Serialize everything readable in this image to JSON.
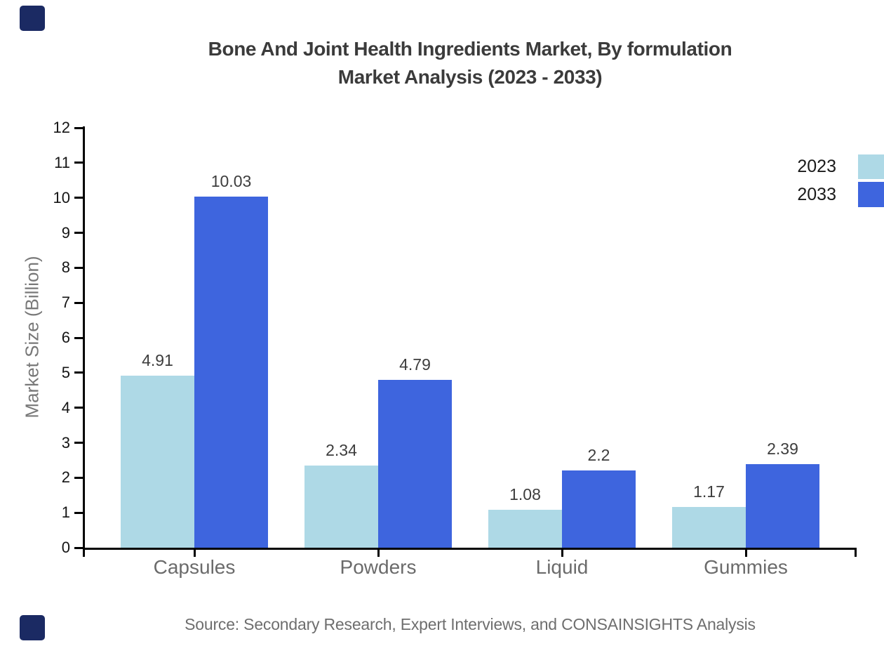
{
  "title": {
    "line1": "Bone And Joint Health Ingredients Market, By formulation",
    "line2": "Market Analysis (2023 - 2033)"
  },
  "y_axis": {
    "label": "Market Size (Billion)",
    "min": 0,
    "max": 12,
    "tick_step": 1
  },
  "x_axis": {
    "categories": [
      "Capsules",
      "Powders",
      "Liquid",
      "Gummies"
    ]
  },
  "legend": {
    "items": [
      {
        "label": "2023",
        "color": "#aed9e6"
      },
      {
        "label": "2033",
        "color": "#3e65de"
      }
    ]
  },
  "source": {
    "text": "Source: Secondary Research, Expert Interviews, and CONSAINSIGHTS Analysis"
  },
  "colors": {
    "series_2023": "#aed9e6",
    "series_2033": "#3e65de",
    "axis": "#000000",
    "title_text": "#3b3b3b",
    "tick_text": "#141414",
    "category_text": "#6b6b6b",
    "value_text": "#3d3d3d",
    "source_text": "#6e6e6e",
    "brand_mark": "#1b2a63"
  },
  "chart_data": {
    "type": "bar",
    "title": "Bone And Joint Health Ingredients Market, By formulation Market Analysis (2023 - 2033)",
    "categories": [
      "Capsules",
      "Powders",
      "Liquid",
      "Gummies"
    ],
    "series": [
      {
        "name": "2023",
        "color": "#aed9e6",
        "values": [
          4.91,
          2.34,
          1.08,
          1.17
        ]
      },
      {
        "name": "2033",
        "color": "#3e65de",
        "values": [
          10.03,
          4.79,
          2.2,
          2.39
        ]
      }
    ],
    "xlabel": "",
    "ylabel": "Market Size (Billion)",
    "ylim": [
      0,
      12
    ],
    "ytick_step": 1,
    "grid": false,
    "legend_position": "top-right",
    "value_labels": true
  }
}
